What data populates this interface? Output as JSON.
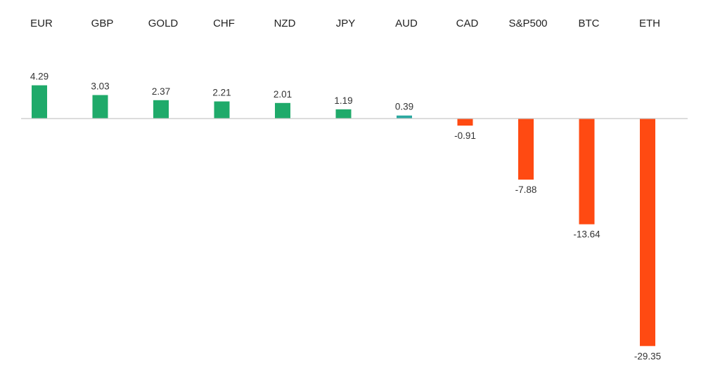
{
  "chart_data": {
    "type": "bar",
    "categories": [
      "EUR",
      "GBP",
      "GOLD",
      "CHF",
      "NZD",
      "JPY",
      "AUD",
      "CAD",
      "S&P500",
      "BTC",
      "ETH"
    ],
    "values": [
      4.29,
      3.03,
      2.37,
      2.21,
      2.01,
      1.19,
      0.39,
      -0.91,
      -7.88,
      -13.64,
      -29.35
    ],
    "value_labels": [
      "4.29",
      "3.03",
      "2.37",
      "2.21",
      "2.01",
      "1.19",
      "0.39",
      "-0.91",
      "-7.88",
      "-13.64",
      "-29.35"
    ],
    "title": "",
    "xlabel": "",
    "ylabel": "",
    "ylim": [
      -30,
      5
    ],
    "grid": false,
    "legend": "none",
    "category_axis_position": "top",
    "colors": {
      "positive": "#1faa6a",
      "positive_small": "#2aa8a0",
      "negative": "#ff4a12",
      "baseline": "#c8c8c8"
    }
  }
}
